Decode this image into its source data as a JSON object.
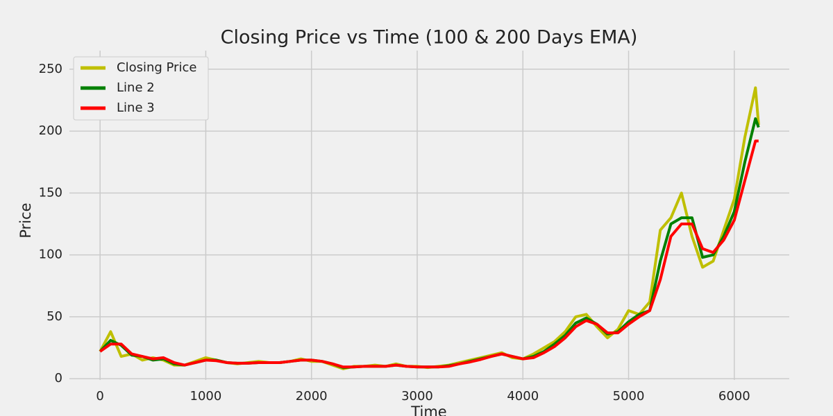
{
  "chart_data": {
    "type": "line",
    "title": "Closing Price vs Time (100 & 200 Days EMA)",
    "x_label": "Time",
    "y_label": "Price",
    "x": [
      0,
      100,
      200,
      300,
      400,
      500,
      600,
      700,
      800,
      900,
      1000,
      1100,
      1200,
      1300,
      1400,
      1500,
      1600,
      1700,
      1800,
      1900,
      2000,
      2100,
      2200,
      2300,
      2400,
      2500,
      2600,
      2700,
      2800,
      2900,
      3000,
      3100,
      3200,
      3300,
      3400,
      3500,
      3600,
      3700,
      3800,
      3900,
      4000,
      4100,
      4200,
      4300,
      4400,
      4500,
      4600,
      4700,
      4800,
      4900,
      5000,
      5100,
      5200,
      5300,
      5400,
      5500,
      5600,
      5700,
      5800,
      5900,
      6000,
      6100,
      6200,
      6230
    ],
    "series": [
      {
        "name": "Closing Price",
        "color": "#bfbf00",
        "values": [
          22,
          38,
          18,
          20,
          15,
          17,
          15,
          11,
          11,
          14,
          17,
          15,
          13,
          12,
          13,
          14,
          13,
          13,
          14,
          16,
          14,
          14,
          11,
          8,
          10,
          10,
          11,
          10,
          12,
          10,
          10,
          9,
          10,
          11,
          13,
          15,
          17,
          19,
          21,
          17,
          16,
          20,
          25,
          30,
          38,
          50,
          52,
          42,
          33,
          40,
          55,
          52,
          62,
          120,
          130,
          150,
          115,
          90,
          95,
          120,
          145,
          195,
          235,
          205
        ]
      },
      {
        "name": "Line 2",
        "color": "#008000",
        "values": [
          22,
          31,
          27,
          19,
          18,
          15,
          16,
          12,
          11,
          13,
          15,
          15,
          13,
          12.5,
          12.5,
          13,
          13,
          13,
          14,
          15,
          15,
          14,
          12,
          9,
          9.5,
          10,
          10,
          10,
          11,
          10,
          9.5,
          9.5,
          9.5,
          10.5,
          12,
          14,
          16,
          18,
          20,
          18,
          16,
          18,
          22,
          28,
          35,
          45,
          49,
          44,
          36,
          38,
          46,
          52,
          55,
          95,
          125,
          130,
          130,
          98,
          100,
          115,
          135,
          175,
          210,
          203
        ]
      },
      {
        "name": "Line 3",
        "color": "#ff0000",
        "values": [
          22,
          28,
          28,
          20,
          18,
          16,
          17,
          13,
          11,
          13,
          15,
          14.5,
          13,
          12.5,
          12.5,
          13,
          13,
          13,
          14,
          15,
          15,
          14,
          12,
          9.5,
          9.5,
          10,
          10,
          10,
          11,
          10,
          9.5,
          9.5,
          9.5,
          10,
          12,
          13.5,
          15.5,
          18,
          20,
          18,
          16,
          17,
          21,
          26,
          33,
          42,
          47,
          44,
          37,
          37,
          44,
          50,
          55,
          80,
          115,
          125,
          125,
          105,
          102,
          112,
          128,
          160,
          192,
          192
        ]
      }
    ],
    "xlim": [
      -290,
      6520
    ],
    "xticks": [
      0,
      1000,
      2000,
      3000,
      4000,
      5000,
      6000
    ],
    "ylim": [
      -1,
      265
    ],
    "yticks": [
      0,
      50,
      100,
      150,
      200,
      250
    ],
    "grid": true,
    "legend": "upper-left"
  }
}
